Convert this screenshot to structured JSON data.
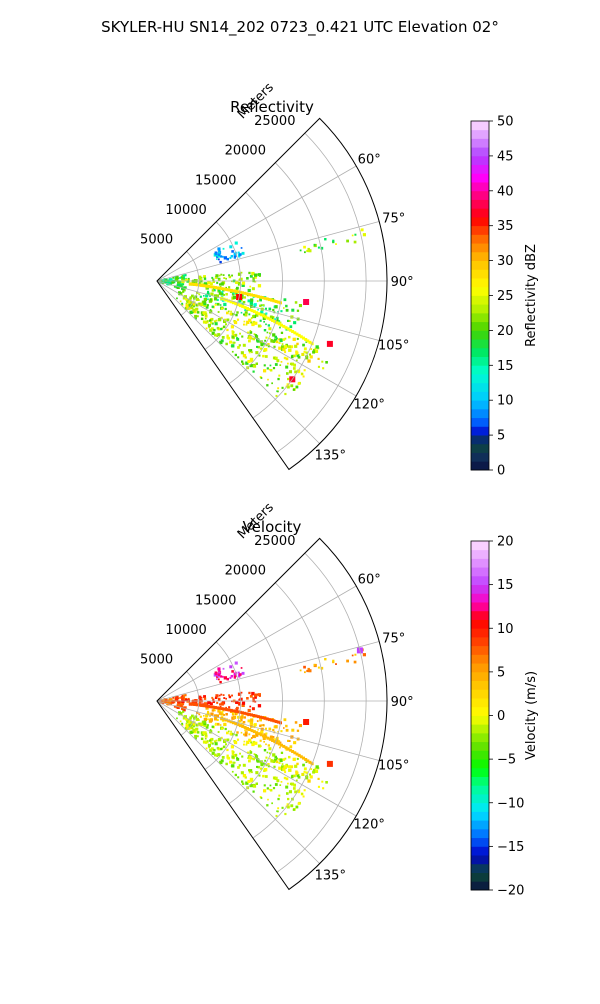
{
  "figure_title": "SKYLER-HU  SN14_202  0723_0.421 UTC Elevation 02°",
  "chart_data": [
    {
      "type": "heatmap",
      "projection": "polar-sector",
      "title": "Reflectivity",
      "r_axis_label": "Meters",
      "r_ticks": [
        5000,
        10000,
        15000,
        20000,
        25000
      ],
      "r_tick_labels": [
        "5000",
        "10000",
        "15000",
        "20000",
        "25000"
      ],
      "rlim": [
        0,
        27500
      ],
      "theta_ticks": [
        60,
        75,
        90,
        105,
        120,
        135
      ],
      "theta_tick_labels": [
        "60°",
        "75°",
        "90°",
        "105°",
        "120°",
        "135°"
      ],
      "theta_range_deg": [
        45,
        145
      ],
      "grid": true,
      "colorbar": {
        "label": "Reflectivity dBZ",
        "range": [
          0,
          50
        ],
        "ticks": [
          0,
          5,
          10,
          15,
          20,
          25,
          30,
          35,
          40,
          45,
          50
        ],
        "tick_labels": [
          "0",
          "5",
          "10",
          "15",
          "20",
          "25",
          "30",
          "35",
          "40",
          "45",
          "50"
        ],
        "colormap": "NWSRef",
        "stops": [
          {
            "v": 0,
            "color": "#0a1040"
          },
          {
            "v": 2,
            "color": "#10305a"
          },
          {
            "v": 4,
            "color": "#0c4a3a"
          },
          {
            "v": 5,
            "color": "#0000c8"
          },
          {
            "v": 7,
            "color": "#0064ff"
          },
          {
            "v": 10,
            "color": "#00c8ff"
          },
          {
            "v": 14,
            "color": "#00ffd0"
          },
          {
            "v": 17,
            "color": "#00e860"
          },
          {
            "v": 20,
            "color": "#44d400"
          },
          {
            "v": 23,
            "color": "#b4f000"
          },
          {
            "v": 26,
            "color": "#ffff00"
          },
          {
            "v": 30,
            "color": "#ffc000"
          },
          {
            "v": 33,
            "color": "#ff7000"
          },
          {
            "v": 36,
            "color": "#ff0000"
          },
          {
            "v": 39,
            "color": "#ff0070"
          },
          {
            "v": 42,
            "color": "#ff00ff"
          },
          {
            "v": 45,
            "color": "#b040ff"
          },
          {
            "v": 50,
            "color": "#ffe0ff"
          }
        ]
      },
      "echo_regions": [
        {
          "name": "near-range",
          "az": [
            78,
            108
          ],
          "r": [
            0,
            3500
          ],
          "value": [
            15,
            22
          ]
        },
        {
          "name": "band-90",
          "az": [
            84,
            96
          ],
          "r": [
            3000,
            12500
          ],
          "value": [
            18,
            26
          ]
        },
        {
          "name": "patch-70",
          "az": [
            62,
            74
          ],
          "r": [
            7500,
            11000
          ],
          "value": [
            6,
            14
          ]
        },
        {
          "name": "cluster-105",
          "az": [
            98,
            112
          ],
          "r": [
            5000,
            17500
          ],
          "value": [
            14,
            24
          ]
        },
        {
          "name": "sector-120",
          "az": [
            112,
            134
          ],
          "r": [
            3000,
            21000
          ],
          "value": [
            18,
            28
          ]
        },
        {
          "name": "radial-115",
          "az": [
            114,
            118
          ],
          "r": [
            15000,
            22500
          ],
          "value": [
            20,
            30
          ]
        },
        {
          "name": "radial-78",
          "az": [
            76,
            79
          ],
          "r": [
            17500,
            25500
          ],
          "value": [
            16,
            26
          ]
        }
      ],
      "echo_lines": [
        {
          "az": [
            95,
            100
          ],
          "r": [
            4000,
            15000
          ],
          "value": 28
        },
        {
          "az": [
            105,
            112
          ],
          "r": [
            8000,
            20000
          ],
          "value": 26
        }
      ],
      "echo_specks": [
        {
          "az": 110,
          "r": 22000,
          "value": 37
        },
        {
          "az": 98,
          "r": 18000,
          "value": 38
        },
        {
          "az": 126,
          "r": 20000,
          "value": 37
        },
        {
          "az": 101,
          "r": 10000,
          "value": 36
        }
      ]
    },
    {
      "type": "heatmap",
      "projection": "polar-sector",
      "title": "Velocity",
      "r_axis_label": "Meters",
      "r_ticks": [
        5000,
        10000,
        15000,
        20000,
        25000
      ],
      "r_tick_labels": [
        "5000",
        "10000",
        "15000",
        "20000",
        "25000"
      ],
      "rlim": [
        0,
        27500
      ],
      "theta_ticks": [
        60,
        75,
        90,
        105,
        120,
        135
      ],
      "theta_tick_labels": [
        "60°",
        "75°",
        "90°",
        "105°",
        "120°",
        "135°"
      ],
      "theta_range_deg": [
        45,
        145
      ],
      "grid": true,
      "colorbar": {
        "label": "Velocity (m/s)",
        "range": [
          -20,
          20
        ],
        "ticks": [
          -20,
          -15,
          -10,
          -5,
          0,
          5,
          10,
          15,
          20
        ],
        "tick_labels": [
          "−20",
          "−15",
          "−10",
          "−5",
          "0",
          "5",
          "10",
          "15",
          "20"
        ],
        "colormap": "NWSVel",
        "stops": [
          {
            "v": -20,
            "color": "#0a1040"
          },
          {
            "v": -18,
            "color": "#0c4a3a"
          },
          {
            "v": -16,
            "color": "#0000c8"
          },
          {
            "v": -14,
            "color": "#0064ff"
          },
          {
            "v": -11,
            "color": "#00e6ff"
          },
          {
            "v": -8,
            "color": "#00ff90"
          },
          {
            "v": -6,
            "color": "#00ff00"
          },
          {
            "v": -4,
            "color": "#50e000"
          },
          {
            "v": -2,
            "color": "#a0f000"
          },
          {
            "v": 0,
            "color": "#ffff00"
          },
          {
            "v": 3,
            "color": "#ffd000"
          },
          {
            "v": 6,
            "color": "#ff9000"
          },
          {
            "v": 9,
            "color": "#ff3000"
          },
          {
            "v": 11,
            "color": "#ff0000"
          },
          {
            "v": 13,
            "color": "#ff00c0"
          },
          {
            "v": 15,
            "color": "#c040ff"
          },
          {
            "v": 20,
            "color": "#ffe0ff"
          }
        ]
      },
      "echo_regions": [
        {
          "name": "near-range",
          "az": [
            78,
            108
          ],
          "r": [
            0,
            3500
          ],
          "value": [
            6,
            10
          ]
        },
        {
          "name": "band-90",
          "az": [
            84,
            96
          ],
          "r": [
            3000,
            12500
          ],
          "value": [
            7,
            11
          ]
        },
        {
          "name": "patch-70",
          "az": [
            62,
            74
          ],
          "r": [
            7500,
            11000
          ],
          "value": [
            11,
            16
          ]
        },
        {
          "name": "cluster-105",
          "az": [
            98,
            112
          ],
          "r": [
            5000,
            17500
          ],
          "value": [
            1,
            6
          ]
        },
        {
          "name": "sector-120",
          "az": [
            112,
            134
          ],
          "r": [
            3000,
            21000
          ],
          "value": [
            -4,
            1
          ]
        },
        {
          "name": "radial-115",
          "az": [
            114,
            118
          ],
          "r": [
            15000,
            22500
          ],
          "value": [
            -2,
            3
          ]
        },
        {
          "name": "radial-78",
          "az": [
            76,
            79
          ],
          "r": [
            17500,
            25500
          ],
          "value": [
            2,
            8
          ]
        }
      ],
      "echo_lines": [
        {
          "az": [
            95,
            100
          ],
          "r": [
            4000,
            15000
          ],
          "value": 8
        },
        {
          "az": [
            105,
            112
          ],
          "r": [
            8000,
            20000
          ],
          "value": 4
        }
      ],
      "echo_specks": [
        {
          "az": 110,
          "r": 22000,
          "value": 9
        },
        {
          "az": 98,
          "r": 18000,
          "value": 10
        },
        {
          "az": 76,
          "r": 25000,
          "value": 15
        }
      ]
    }
  ]
}
